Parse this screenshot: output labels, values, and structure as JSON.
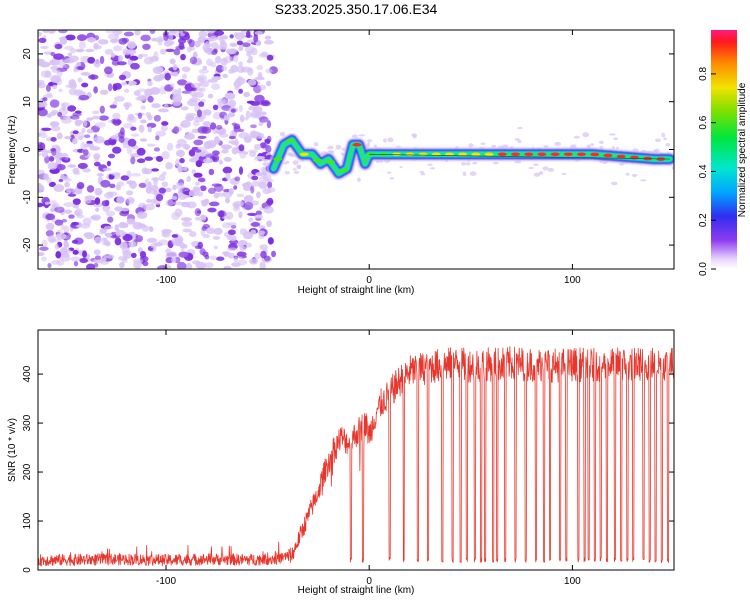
{
  "title": "S233.2025.350.17.06.E34",
  "chart_data": [
    {
      "type": "heatmap",
      "xlabel": "Height of straight line (km)",
      "ylabel": "Frequency (Hz)",
      "xlim": [
        -163,
        150
      ],
      "ylim": [
        -25,
        25
      ],
      "x_ticks": [
        -100,
        0,
        100
      ],
      "y_ticks": [
        20,
        10,
        0,
        -10,
        -20
      ],
      "noise_region_x": [
        -163,
        -47
      ],
      "ridge": {
        "x": [
          -47,
          -42,
          -38,
          -33,
          -28,
          -24,
          -20,
          -15,
          -11,
          -8,
          -5,
          -2,
          0,
          20,
          50,
          80,
          110,
          140,
          148
        ],
        "freq": [
          -4,
          1,
          2,
          -1,
          -1,
          -3,
          -2,
          -5,
          -4,
          1,
          1,
          -3,
          -1,
          -1,
          -1,
          -1,
          -1,
          -2,
          -2
        ],
        "amplitude": [
          0.3,
          0.45,
          0.5,
          0.55,
          0.5,
          0.45,
          0.35,
          0.3,
          0.4,
          0.6,
          0.65,
          0.3,
          0.45,
          0.55,
          0.6,
          0.65,
          0.7,
          0.75,
          0.9
        ]
      },
      "colorbar": {
        "label": "Normalized spectral amplitude",
        "ticks": [
          "0.0",
          "0.2",
          "0.4",
          "0.6",
          "0.8"
        ],
        "tick_values": [
          0.0,
          0.2,
          0.4,
          0.6,
          0.8
        ],
        "range": [
          0,
          0.98
        ]
      },
      "colors": {
        "noise": "#7b2be0",
        "noise_light": "#d7c2f5",
        "low": "#3a36e8",
        "mid": "#00e6d8",
        "high": "#ff2a1a"
      }
    },
    {
      "type": "line",
      "xlabel": "Height of straight line (km)",
      "ylabel": "SNR (10 * v/v)",
      "xlim": [
        -163,
        150
      ],
      "ylim": [
        0,
        490
      ],
      "x_ticks": [
        -100,
        0,
        100
      ],
      "y_ticks": [
        0,
        100,
        200,
        300,
        400
      ],
      "line_color": "#e8362c",
      "series": {
        "name": "SNR",
        "x": [
          -163,
          -140,
          -120,
          -100,
          -80,
          -60,
          -45,
          -38,
          -34,
          -30,
          -26,
          -22,
          -18,
          -14,
          -10,
          -6,
          -2,
          0,
          4,
          8,
          12,
          16,
          20,
          30,
          40,
          50,
          60,
          70,
          80,
          90,
          100,
          110,
          120,
          130,
          140,
          150
        ],
        "y": [
          20,
          21,
          22,
          20,
          22,
          21,
          23,
          30,
          70,
          110,
          150,
          200,
          240,
          270,
          260,
          280,
          300,
          275,
          330,
          350,
          370,
          390,
          405,
          415,
          420,
          418,
          420,
          422,
          420,
          418,
          420,
          418,
          420,
          420,
          422,
          420
        ],
        "dropout_x": [
          -9,
          -3,
          10,
          17,
          24,
          29,
          36,
          41,
          45,
          48,
          52,
          55,
          57,
          61,
          63,
          67,
          72,
          77,
          82,
          86,
          89,
          94,
          97,
          103,
          106,
          108,
          111,
          114,
          117,
          121,
          124,
          127,
          130,
          135,
          138,
          141,
          144,
          147
        ],
        "dropout_min": 15,
        "noise_amplitude": 25
      }
    }
  ]
}
